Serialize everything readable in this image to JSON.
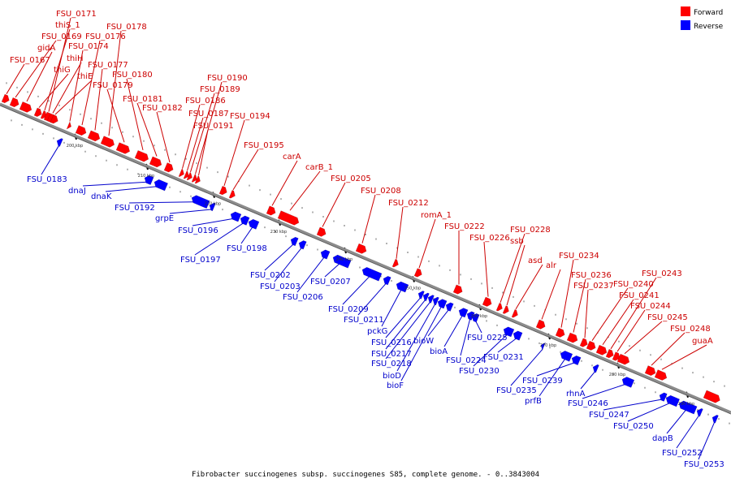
{
  "colors": {
    "forward": "#ff0000",
    "reverse": "#0000ff",
    "forward_label": "#cc0000",
    "reverse_label": "#0000cc",
    "backbone": "#8c8c8c"
  },
  "legend": [
    {
      "label": "Forward",
      "strand": "forward"
    },
    {
      "label": "Reverse",
      "strand": "reverse"
    }
  ],
  "caption": "Fibrobacter succinogenes subsp. succinogenes S85, complete genome. - 0..3843004",
  "ticks": [
    "200 kbp",
    "210 kbp",
    "220 kbp",
    "230 kbp",
    "240 kbp",
    "250 kbp",
    "260 kbp",
    "270 kbp",
    "280 kbp",
    "290 kbp"
  ],
  "forward_genes": [
    "FSU_0167",
    "FSU_0169",
    "gidA",
    "thiG",
    "thiS_1",
    "FSU_0171",
    "thiH",
    "thiE",
    "FSU_0174",
    "FSU_0176",
    "FSU_0177",
    "FSU_0178",
    "FSU_0179",
    "FSU_0180",
    "FSU_0181",
    "FSU_0182",
    "FSU_0186",
    "FSU_0187",
    "FSU_0189",
    "FSU_0190",
    "FSU_0191",
    "FSU_0194",
    "FSU_0195",
    "carA",
    "carB_1",
    "FSU_0205",
    "FSU_0208",
    "FSU_0212",
    "romA_1",
    "FSU_0222",
    "FSU_0226",
    "FSU_0228",
    "ssb",
    "asd",
    "alr",
    "FSU_0234",
    "FSU_0236",
    "FSU_0237",
    "FSU_0240",
    "FSU_0241",
    "FSU_0243",
    "FSU_0244",
    "FSU_0245",
    "FSU_0248",
    "guaA"
  ],
  "reverse_genes": [
    "FSU_0183",
    "dnaJ",
    "dnaK",
    "FSU_0192",
    "grpE",
    "FSU_0196",
    "FSU_0197",
    "FSU_0198",
    "FSU_0202",
    "FSU_0203",
    "FSU_0206",
    "FSU_0207",
    "FSU_0209",
    "FSU_0211",
    "pckG",
    "FSU_0216",
    "FSU_0217",
    "FSU_0218",
    "bioD",
    "bioF",
    "bioW",
    "bioA",
    "FSU_0224",
    "FSU_0225",
    "FSU_0230",
    "FSU_0231",
    "FSU_0235",
    "prfB",
    "FSU_0239",
    "rhnA",
    "FSU_0246",
    "FSU_0247",
    "FSU_0250",
    "dapB",
    "FSU_0252",
    "FSU_0253"
  ]
}
